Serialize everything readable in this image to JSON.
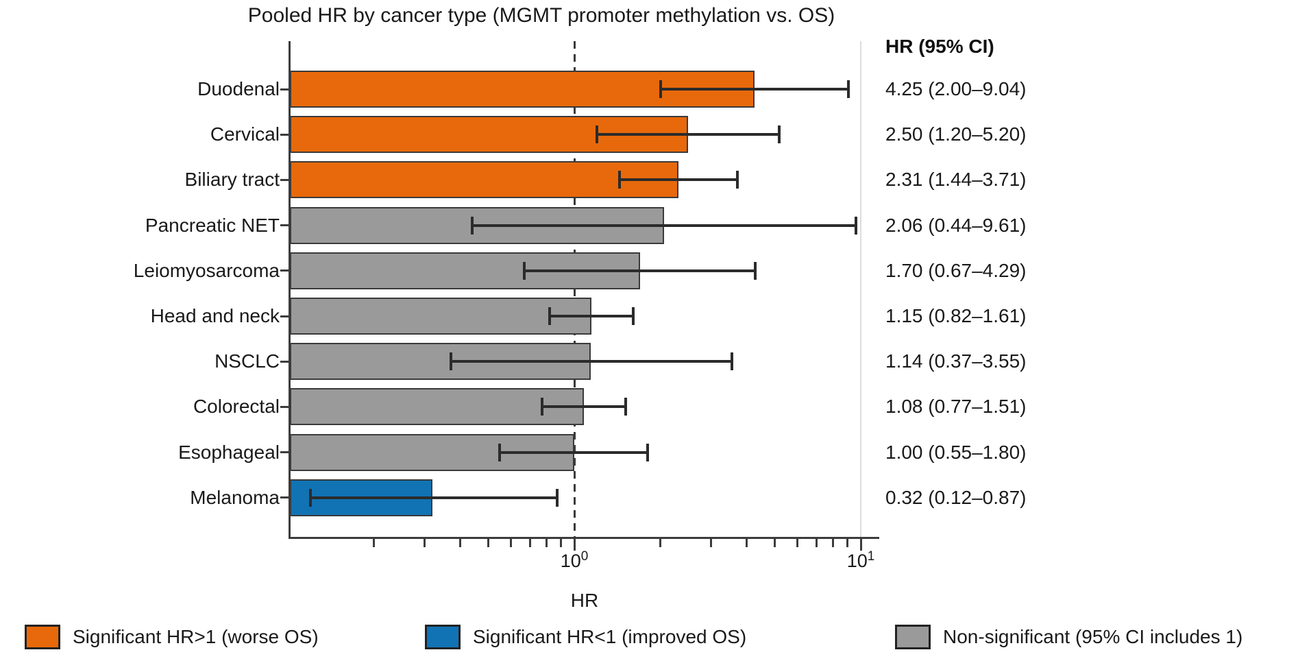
{
  "title": "Pooled HR by cancer type (MGMT promoter methylation vs. OS)",
  "colors": {
    "sig_high": "#E8690B",
    "sig_low": "#1173B4",
    "nonsig": "#9A9A9A",
    "bar_border": "#3a3a3a",
    "error_bar": "#2b2b2b",
    "axis": "#3c3c3c",
    "gridline": "#dcdcdc"
  },
  "chart_data": {
    "type": "bar",
    "orientation": "horizontal",
    "title": "Pooled HR by cancer type (MGMT promoter methylation vs. OS)",
    "xlabel": "HR",
    "x_scale": "log10",
    "xlim": [
      0.1,
      11.9
    ],
    "reference_line_value": 1.0,
    "gridline_value": 10,
    "x_ticks_major": [
      {
        "base": "10",
        "exp": "0",
        "value": 1
      },
      {
        "base": "10",
        "exp": "1",
        "value": 10
      }
    ],
    "x_ticks_minor": [
      0.2,
      0.3,
      0.4,
      0.5,
      0.6,
      0.7,
      0.8,
      0.9,
      2,
      3,
      4,
      5,
      6,
      7,
      8,
      9
    ],
    "column_header": "HR (95% CI)",
    "categories": [
      "Duodenal",
      "Cervical",
      "Biliary tract",
      "Pancreatic NET",
      "Leiomyosarcoma",
      "Head and neck",
      "NSCLC",
      "Colorectal",
      "Esophageal",
      "Melanoma"
    ],
    "rows": [
      {
        "label": "Duodenal",
        "hr": 4.25,
        "ci_low": 2.0,
        "ci_high": 9.04,
        "group": "sig_high",
        "ci_text": "4.25 (2.00–9.04)"
      },
      {
        "label": "Cervical",
        "hr": 2.5,
        "ci_low": 1.2,
        "ci_high": 5.2,
        "group": "sig_high",
        "ci_text": "2.50 (1.20–5.20)"
      },
      {
        "label": "Biliary tract",
        "hr": 2.31,
        "ci_low": 1.44,
        "ci_high": 3.71,
        "group": "sig_high",
        "ci_text": "2.31 (1.44–3.71)"
      },
      {
        "label": "Pancreatic NET",
        "hr": 2.06,
        "ci_low": 0.44,
        "ci_high": 9.61,
        "group": "nonsig",
        "ci_text": "2.06 (0.44–9.61)"
      },
      {
        "label": "Leiomyosarcoma",
        "hr": 1.7,
        "ci_low": 0.67,
        "ci_high": 4.29,
        "group": "nonsig",
        "ci_text": "1.70 (0.67–4.29)"
      },
      {
        "label": "Head and neck",
        "hr": 1.15,
        "ci_low": 0.82,
        "ci_high": 1.61,
        "group": "nonsig",
        "ci_text": "1.15 (0.82–1.61)"
      },
      {
        "label": "NSCLC",
        "hr": 1.14,
        "ci_low": 0.37,
        "ci_high": 3.55,
        "group": "nonsig",
        "ci_text": "1.14 (0.37–3.55)"
      },
      {
        "label": "Colorectal",
        "hr": 1.08,
        "ci_low": 0.77,
        "ci_high": 1.51,
        "group": "nonsig",
        "ci_text": "1.08 (0.77–1.51)"
      },
      {
        "label": "Esophageal",
        "hr": 1.0,
        "ci_low": 0.55,
        "ci_high": 1.8,
        "group": "nonsig",
        "ci_text": "1.00 (0.55–1.80)"
      },
      {
        "label": "Melanoma",
        "hr": 0.32,
        "ci_low": 0.12,
        "ci_high": 0.87,
        "group": "sig_low",
        "ci_text": "0.32 (0.12–0.87)"
      }
    ]
  },
  "legend": {
    "items": [
      {
        "label": "Significant HR>1 (worse OS)",
        "color_key": "sig_high"
      },
      {
        "label": "Significant HR<1 (improved OS)",
        "color_key": "sig_low"
      },
      {
        "label": "Non-significant (95% CI includes 1)",
        "color_key": "nonsig"
      }
    ]
  }
}
